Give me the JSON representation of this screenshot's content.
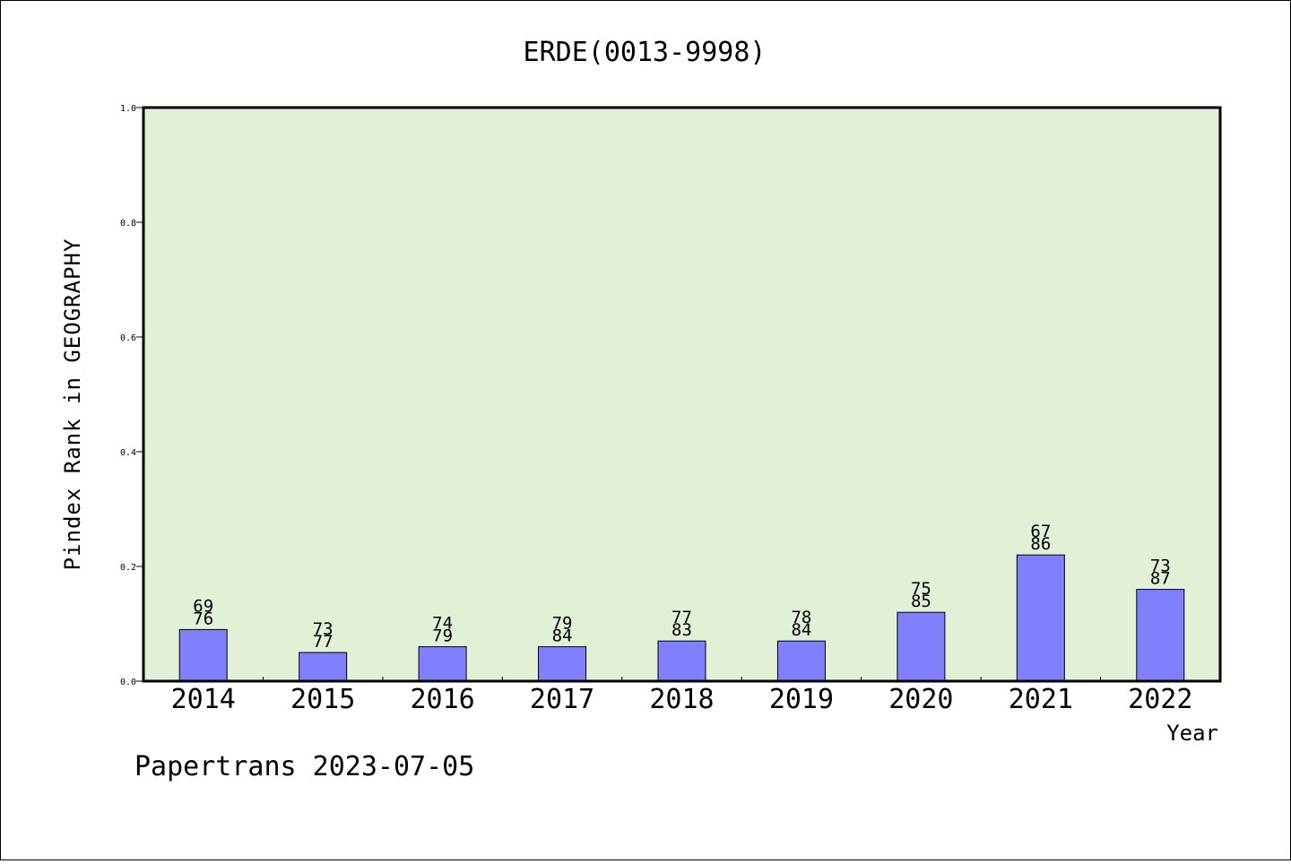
{
  "chart_data": {
    "type": "bar",
    "title": "ERDE(0013-9998)",
    "xlabel": "Year",
    "ylabel": "Pindex Rank in GEOGRAPHY",
    "ylim": [
      0,
      1.0
    ],
    "yticks": [
      "0.0",
      "0.2",
      "0.4",
      "0.6",
      "0.8",
      "1.0"
    ],
    "categories": [
      "2014",
      "2015",
      "2016",
      "2017",
      "2018",
      "2019",
      "2020",
      "2021",
      "2022"
    ],
    "values": [
      0.09,
      0.05,
      0.06,
      0.06,
      0.07,
      0.07,
      0.12,
      0.22,
      0.16
    ],
    "labels_top": [
      "69",
      "73",
      "74",
      "79",
      "77",
      "78",
      "75",
      "67",
      "73"
    ],
    "labels_bottom": [
      "76",
      "77",
      "79",
      "84",
      "83",
      "84",
      "85",
      "86",
      "87"
    ],
    "grid": false,
    "colors": {
      "plot_background": "#e2f0d6",
      "bar_fill": "#8080ff",
      "bar_stroke": "#000000"
    }
  },
  "footer": {
    "text": "Papertrans 2023-07-05"
  }
}
